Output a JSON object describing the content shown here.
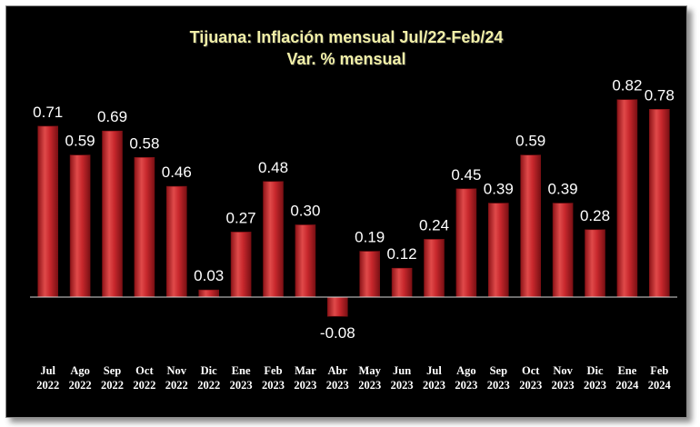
{
  "chart_data": {
    "type": "bar",
    "title": "Tijuana: Inflación mensual Jul/22-Feb/24",
    "subtitle": "Var. % mensual",
    "categories": [
      [
        "Jul",
        "2022"
      ],
      [
        "Ago",
        "2022"
      ],
      [
        "Sep",
        "2022"
      ],
      [
        "Oct",
        "2022"
      ],
      [
        "Nov",
        "2022"
      ],
      [
        "Dic",
        "2022"
      ],
      [
        "Ene",
        "2023"
      ],
      [
        "Feb",
        "2023"
      ],
      [
        "Mar",
        "2023"
      ],
      [
        "Abr",
        "2023"
      ],
      [
        "May",
        "2023"
      ],
      [
        "Jun",
        "2023"
      ],
      [
        "Jul",
        "2023"
      ],
      [
        "Ago",
        "2023"
      ],
      [
        "Sep",
        "2023"
      ],
      [
        "Oct",
        "2023"
      ],
      [
        "Nov",
        "2023"
      ],
      [
        "Dic",
        "2023"
      ],
      [
        "Ene",
        "2024"
      ],
      [
        "Feb",
        "2024"
      ]
    ],
    "values": [
      0.71,
      0.59,
      0.69,
      0.58,
      0.46,
      0.03,
      0.27,
      0.48,
      0.3,
      -0.08,
      0.19,
      0.12,
      0.24,
      0.45,
      0.39,
      0.59,
      0.39,
      0.28,
      0.82,
      0.78
    ],
    "data_labels": [
      "0.71",
      "0.59",
      "0.69",
      "0.58",
      "0.46",
      "0.03",
      "0.27",
      "0.48",
      "0.30",
      "-0.08",
      "0.19",
      "0.12",
      "0.24",
      "0.45",
      "0.39",
      "0.59",
      "0.39",
      "0.28",
      "0.82",
      "0.78"
    ],
    "xlabel": "",
    "ylabel": "",
    "ylim": [
      -0.08,
      0.82
    ],
    "grid": false,
    "legend": "none",
    "colors": {
      "background": "#000000",
      "bar": "#c8282d",
      "bar_highlight": "#ec5a5a",
      "bar_shadow": "#7a1014",
      "title": "#f2f0a8",
      "text": "#ffffff",
      "axis": "#d9d9d9"
    }
  }
}
